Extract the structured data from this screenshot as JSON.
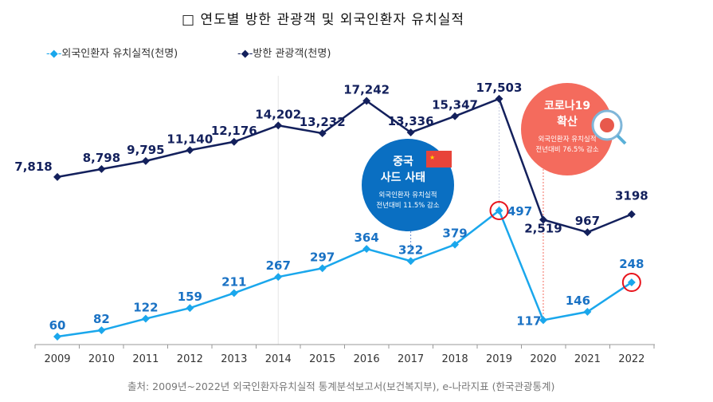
{
  "title": "□ 연도별 방한 관광객 및 외국인환자 유치실적",
  "source": "출처: 2009년~2022년  외국인환자유치실적  통계분석보고서(보건복지부),  e-나라지표  (한국관광통계)",
  "chart_data": {
    "type": "line",
    "categories": [
      "2009",
      "2010",
      "2011",
      "2012",
      "2013",
      "2014",
      "2015",
      "2016",
      "2017",
      "2018",
      "2019",
      "2020",
      "2021",
      "2022"
    ],
    "legend_placement": "top-left",
    "grid": false,
    "series": [
      {
        "name": "외국인환자 유치실적(천명)",
        "color": "#1aa7ec",
        "values": [
          60,
          82,
          122,
          159,
          211,
          267,
          297,
          364,
          322,
          379,
          497,
          117,
          146,
          248
        ],
        "labels": [
          "60",
          "82",
          "122",
          "159",
          "211",
          "267",
          "297",
          "364",
          "322",
          "379",
          "497",
          "117",
          "146",
          "248"
        ]
      },
      {
        "name": "방한 관광객(천명)",
        "color": "#13205c",
        "values": [
          7818,
          8798,
          9795,
          11140,
          12176,
          14202,
          13232,
          17242,
          13336,
          15347,
          17503,
          2519,
          967,
          3198
        ],
        "labels": [
          "7,818",
          "8,798",
          "9,795",
          "11,140",
          "12,176",
          "14,202",
          "13,232",
          "17,242",
          "13,336",
          "15,347",
          "17,503",
          "2,519",
          "967",
          "3198"
        ]
      }
    ],
    "annotations": [
      {
        "title1": "중국",
        "title2": "사드 사태",
        "line1": "외국인환자 유치실적",
        "line2": "전년대비 11.5% 감소",
        "color": "#0a6fc2",
        "year": "2017"
      },
      {
        "title1": "코로나19",
        "title2": "확산",
        "line1": "외국인환자 유치실적",
        "line2": "전년대비 76.5% 감소",
        "color": "#f46b5d",
        "year": "2020"
      }
    ],
    "highlighted_points": [
      "2019",
      "2022"
    ]
  }
}
